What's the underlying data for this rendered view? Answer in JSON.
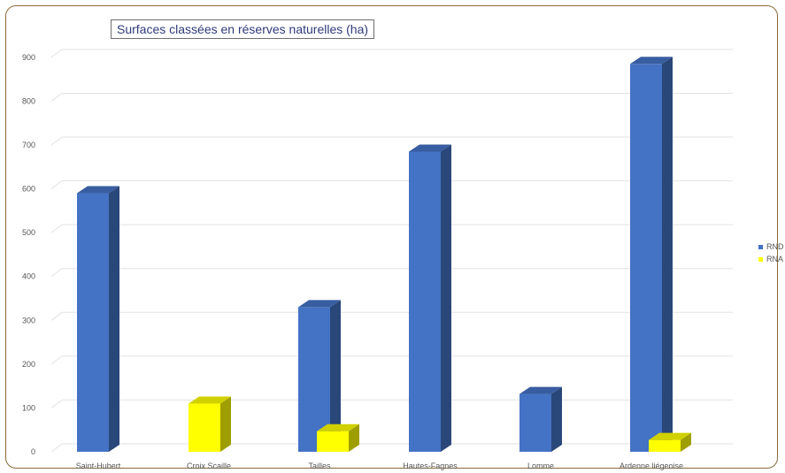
{
  "chart_data": {
    "type": "bar",
    "title": "Surfaces classées en réserves naturelles (ha)",
    "categories": [
      "Saint-Hubert",
      "Croix Scaille",
      "Tailles",
      "Hautes-Fagnes",
      "Lomme",
      "Ardenne liégeoise"
    ],
    "series": [
      {
        "name": "RND",
        "color": "#4472c4",
        "values": [
          590,
          0,
          330,
          685,
          132,
          885
        ]
      },
      {
        "name": "RNA",
        "color": "#ffff00",
        "values": [
          0,
          110,
          47,
          0,
          0,
          27
        ]
      }
    ],
    "yticks": [
      0,
      100,
      200,
      300,
      400,
      500,
      600,
      700,
      800,
      900
    ],
    "ylim": [
      0,
      900
    ],
    "grid": true,
    "legend_position": "right",
    "style": "3d-column"
  }
}
